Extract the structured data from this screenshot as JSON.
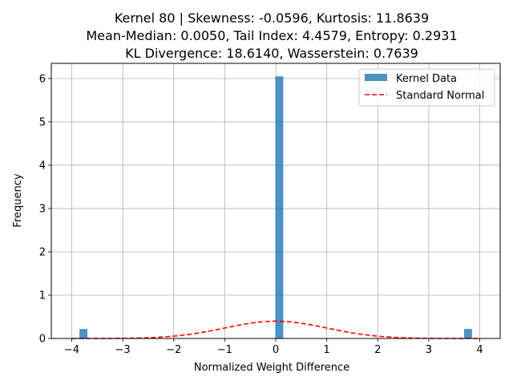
{
  "chart_data": {
    "type": "bar",
    "title_lines": [
      "Kernel 80 | Skewness: -0.0596, Kurtosis: 11.8639",
      "Mean-Median: 0.0050, Tail Index: 4.4579, Entropy: 0.2931",
      "KL Divergence: 18.6140, Wasserstein: 0.7639"
    ],
    "xlabel": "Normalized Weight Difference",
    "ylabel": "Frequency",
    "xlim": [
      -4.4,
      4.4
    ],
    "ylim": [
      0,
      6.35
    ],
    "xticks": [
      -4,
      -3,
      -2,
      -1,
      0,
      1,
      2,
      3,
      4
    ],
    "yticks": [
      0,
      1,
      2,
      3,
      4,
      5,
      6
    ],
    "grid": true,
    "legend_position": "top-right",
    "bin_width": 0.155,
    "series": [
      {
        "name": "Kernel Data",
        "kind": "histogram",
        "color": "#1f77b4",
        "bars": [
          {
            "x": -3.77,
            "value": 0.22
          },
          {
            "x": 0.07,
            "value": 6.05
          },
          {
            "x": 3.77,
            "value": 0.22
          }
        ]
      },
      {
        "name": "Standard Normal",
        "kind": "line",
        "color": "#ff0000",
        "style": "dashed",
        "x_range": [
          -4,
          4
        ]
      }
    ]
  }
}
